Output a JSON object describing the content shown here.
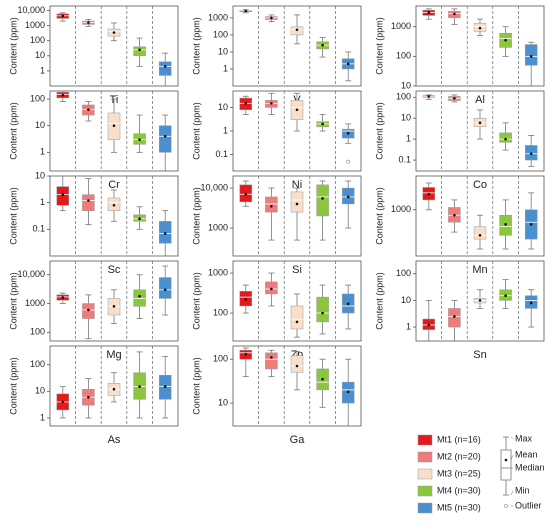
{
  "chart_data": [
    {
      "type": "box",
      "title": "Ti",
      "ylabel": "Content (ppm)",
      "log": true,
      "ylim": [
        0.1,
        20000
      ],
      "yticks": [
        1,
        10,
        100,
        1000,
        {
          "value": 10000,
          "label": "10,000"
        }
      ],
      "boxes": [
        {
          "min": 2000,
          "q1": 3000,
          "median": 4500,
          "q3": 6000,
          "max": 7000,
          "mean": 4500
        },
        {
          "min": 900,
          "q1": 1200,
          "median": 1600,
          "q3": 2000,
          "max": 2500,
          "mean": 1600
        },
        {
          "min": 100,
          "q1": 200,
          "median": 400,
          "q3": 600,
          "max": 1500,
          "mean": 350
        },
        {
          "min": 2,
          "q1": 10,
          "median": 25,
          "q3": 40,
          "max": 150,
          "mean": 25
        },
        {
          "min": 0.1,
          "q1": 0.5,
          "median": 2,
          "q3": 4,
          "max": 15,
          "mean": 2
        }
      ]
    },
    {
      "type": "box",
      "title": "V",
      "ylabel": "Content (ppm)",
      "log": true,
      "ylim": [
        0.1,
        5000
      ],
      "yticks": [
        1,
        10,
        100,
        1000
      ],
      "boxes": [
        {
          "min": 2000,
          "q1": 2300,
          "median": 2600,
          "q3": 2800,
          "max": 3000,
          "mean": 2600
        },
        {
          "min": 600,
          "q1": 800,
          "median": 1000,
          "q3": 1200,
          "max": 1500,
          "mean": 1000
        },
        {
          "min": 30,
          "q1": 100,
          "median": 200,
          "q3": 300,
          "max": 1500,
          "mean": 200
        },
        {
          "min": 5,
          "q1": 15,
          "median": 25,
          "q3": 40,
          "max": 70,
          "mean": 25
        },
        {
          "min": 0.2,
          "q1": 1,
          "median": 2,
          "q3": 4,
          "max": 10,
          "mean": 2
        }
      ]
    },
    {
      "type": "box",
      "title": "Al",
      "ylabel": "Content (ppm)",
      "log": true,
      "ylim": [
        10,
        5000
      ],
      "yticks": [
        10,
        100,
        1000
      ],
      "boxes": [
        {
          "min": 1800,
          "q1": 2400,
          "median": 3000,
          "q3": 3600,
          "max": 4000,
          "mean": 3000
        },
        {
          "min": 1200,
          "q1": 2000,
          "median": 2800,
          "q3": 3300,
          "max": 4000,
          "mean": 2700
        },
        {
          "min": 500,
          "q1": 700,
          "median": 1000,
          "q3": 1300,
          "max": 1800,
          "mean": 900
        },
        {
          "min": 100,
          "q1": 200,
          "median": 400,
          "q3": 600,
          "max": 1000,
          "mean": 350
        },
        {
          "min": 10,
          "q1": 50,
          "median": 100,
          "q3": 250,
          "max": 300,
          "mean": 100
        }
      ]
    },
    {
      "type": "box",
      "title": "Cr",
      "ylabel": "Content (ppm)",
      "log": true,
      "ylim": [
        0.2,
        200
      ],
      "yticks": [
        1,
        10,
        100
      ],
      "boxes": [
        {
          "min": 80,
          "q1": 110,
          "median": 150,
          "q3": 180,
          "max": 200,
          "mean": 140
        },
        {
          "min": 15,
          "q1": 25,
          "median": 40,
          "q3": 60,
          "max": 80,
          "mean": 40
        },
        {
          "min": 1,
          "q1": 3,
          "median": 12,
          "q3": 30,
          "max": 100,
          "mean": 10
        },
        {
          "min": 1,
          "q1": 2,
          "median": 3,
          "q3": 5,
          "max": 25,
          "mean": 3
        },
        {
          "min": 0.2,
          "q1": 1,
          "median": 4,
          "q3": 10,
          "max": 25,
          "mean": 4
        }
      ]
    },
    {
      "type": "box",
      "title": "Ni",
      "ylabel": "Content (ppm)",
      "log": true,
      "ylim": [
        0.02,
        50
      ],
      "yticks": [
        0.1,
        1,
        10
      ],
      "boxes": [
        {
          "min": 5,
          "q1": 8,
          "median": 15,
          "q3": 25,
          "max": 30,
          "mean": 15
        },
        {
          "min": 5,
          "q1": 10,
          "median": 15,
          "q3": 20,
          "max": 40,
          "mean": 15
        },
        {
          "min": 1,
          "q1": 3,
          "median": 10,
          "q3": 20,
          "max": 40,
          "mean": 8
        },
        {
          "min": 1,
          "q1": 1.5,
          "median": 2,
          "q3": 2.5,
          "max": 5,
          "mean": 2
        },
        {
          "min": 0.3,
          "q1": 0.5,
          "median": 1,
          "q3": 1.2,
          "max": 2,
          "mean": 0.8,
          "outliers": [
            0.05
          ]
        }
      ]
    },
    {
      "type": "box",
      "title": "Co",
      "ylabel": "Content (ppm)",
      "log": true,
      "ylim": [
        0.03,
        200
      ],
      "yticks": [
        0.1,
        1,
        10,
        100
      ],
      "boxes": [
        {
          "min": 80,
          "q1": 100,
          "median": 110,
          "q3": 120,
          "max": 130,
          "mean": 110
        },
        {
          "min": 60,
          "q1": 70,
          "median": 90,
          "q3": 110,
          "max": 130,
          "mean": 90
        },
        {
          "min": 1,
          "q1": 4,
          "median": 6,
          "q3": 10,
          "max": 25,
          "mean": 6
        },
        {
          "min": 0.3,
          "q1": 0.7,
          "median": 1,
          "q3": 2,
          "max": 6,
          "mean": 1
        },
        {
          "min": 0.05,
          "q1": 0.1,
          "median": 0.2,
          "q3": 0.5,
          "max": 1.5,
          "mean": 0.2
        }
      ]
    },
    {
      "type": "box",
      "title": "Sc",
      "ylabel": "Content (ppm)",
      "log": true,
      "ylim": [
        0.01,
        10
      ],
      "yticks": [
        0.1,
        1,
        10
      ],
      "boxes": [
        {
          "min": 0.5,
          "q1": 0.8,
          "median": 2,
          "q3": 4,
          "max": 10,
          "mean": 2
        },
        {
          "min": 0.15,
          "q1": 0.5,
          "median": 1.2,
          "q3": 2,
          "max": 8,
          "mean": 1.2
        },
        {
          "min": 0.2,
          "q1": 0.5,
          "median": 1,
          "q3": 1.5,
          "max": 3,
          "mean": 0.8
        },
        {
          "min": 0.1,
          "q1": 0.2,
          "median": 0.25,
          "q3": 0.35,
          "max": 0.7,
          "mean": 0.25
        },
        {
          "min": 0.01,
          "q1": 0.03,
          "median": 0.07,
          "q3": 0.2,
          "max": 0.5,
          "mean": 0.07
        }
      ]
    },
    {
      "type": "box",
      "title": "Si",
      "ylabel": "Content (ppm)",
      "log": true,
      "ylim": [
        200,
        20000
      ],
      "yticks": [
        1000,
        {
          "value": 10000,
          "label": "10,000"
        }
      ],
      "boxes": [
        {
          "min": 3500,
          "q1": 4500,
          "median": 7000,
          "q3": 12000,
          "max": 15000,
          "mean": 7000
        },
        {
          "min": 500,
          "q1": 2500,
          "median": 4000,
          "q3": 6000,
          "max": 10000,
          "mean": 3500
        },
        {
          "min": 500,
          "q1": 2500,
          "median": 5000,
          "q3": 8000,
          "max": 10000,
          "mean": 4000
        },
        {
          "min": 500,
          "q1": 2000,
          "median": 6000,
          "q3": 12000,
          "max": 15000,
          "mean": 5500
        },
        {
          "min": 1000,
          "q1": 4000,
          "median": 6000,
          "q3": 10000,
          "max": 15000,
          "mean": 6000
        }
      ]
    },
    {
      "type": "box",
      "title": "Mn",
      "ylabel": "Content (ppm)",
      "log": true,
      "ylim": [
        150,
        4000
      ],
      "yticks": [
        1000
      ],
      "boxes": [
        {
          "min": 1000,
          "q1": 1500,
          "median": 2000,
          "q3": 2500,
          "max": 3000,
          "mean": 1900
        },
        {
          "min": 400,
          "q1": 600,
          "median": 800,
          "q3": 1100,
          "max": 1500,
          "mean": 800
        },
        {
          "min": 200,
          "q1": 300,
          "median": 350,
          "q3": 500,
          "max": 800,
          "mean": 350
        },
        {
          "min": 200,
          "q1": 350,
          "median": 500,
          "q3": 800,
          "max": 1500,
          "mean": 550
        },
        {
          "min": 200,
          "q1": 300,
          "median": 600,
          "q3": 1000,
          "max": 2000,
          "mean": 550
        }
      ]
    },
    {
      "type": "box",
      "title": "Mg",
      "ylabel": "Content (ppm)",
      "log": true,
      "ylim": [
        50,
        30000
      ],
      "yticks": [
        100,
        1000,
        {
          "value": 10000,
          "label": "10,000"
        }
      ],
      "boxes": [
        {
          "min": 1000,
          "q1": 1300,
          "median": 1700,
          "q3": 2000,
          "max": 2300,
          "mean": 1600
        },
        {
          "min": 60,
          "q1": 300,
          "median": 600,
          "q3": 1000,
          "max": 2000,
          "mean": 600
        },
        {
          "min": 200,
          "q1": 400,
          "median": 800,
          "q3": 1500,
          "max": 3000,
          "mean": 800
        },
        {
          "min": 300,
          "q1": 800,
          "median": 1500,
          "q3": 3000,
          "max": 10000,
          "mean": 1800
        },
        {
          "min": 400,
          "q1": 1500,
          "median": 3000,
          "q3": 8000,
          "max": 20000,
          "mean": 3000
        }
      ]
    },
    {
      "type": "box",
      "title": "Zn",
      "ylabel": "Content (ppm)",
      "log": true,
      "ylim": [
        20,
        2000
      ],
      "yticks": [
        100,
        1000
      ],
      "boxes": [
        {
          "min": 100,
          "q1": 150,
          "median": 250,
          "q3": 350,
          "max": 500,
          "mean": 220
        },
        {
          "min": 150,
          "q1": 300,
          "median": 400,
          "q3": 600,
          "max": 1000,
          "mean": 400
        },
        {
          "min": 25,
          "q1": 40,
          "median": 70,
          "q3": 150,
          "max": 300,
          "mean": 60
        },
        {
          "min": 30,
          "q1": 60,
          "median": 100,
          "q3": 250,
          "max": 500,
          "mean": 100
        },
        {
          "min": 40,
          "q1": 100,
          "median": 150,
          "q3": 300,
          "max": 500,
          "mean": 170
        }
      ]
    },
    {
      "type": "box",
      "title": "Sn",
      "ylabel": "Content (ppm)",
      "log": true,
      "ylim": [
        0.3,
        300
      ],
      "yticks": [
        1,
        10,
        100
      ],
      "boxes": [
        {
          "min": 0.3,
          "q1": 0.8,
          "median": 1.2,
          "q3": 2,
          "max": 10,
          "mean": 1.2
        },
        {
          "min": 0.3,
          "q1": 1,
          "median": 2.5,
          "q3": 5,
          "max": 10,
          "mean": 2.5
        },
        {
          "min": 5,
          "q1": 8,
          "median": 10,
          "q3": 12,
          "max": 25,
          "mean": 10
        },
        {
          "min": 5,
          "q1": 10,
          "median": 15,
          "q3": 25,
          "max": 60,
          "mean": 15
        },
        {
          "min": 1,
          "q1": 5,
          "median": 10,
          "q3": 15,
          "max": 25,
          "mean": 8
        }
      ]
    },
    {
      "type": "box",
      "title": "As",
      "ylabel": "Content (ppm)",
      "log": true,
      "ylim": [
        0.5,
        500
      ],
      "yticks": [
        1,
        10,
        100
      ],
      "boxes": [
        {
          "min": 1,
          "q1": 2,
          "median": 4,
          "q3": 8,
          "max": 15,
          "mean": 4
        },
        {
          "min": 1,
          "q1": 3,
          "median": 6,
          "q3": 12,
          "max": 30,
          "mean": 6
        },
        {
          "min": 4,
          "q1": 7,
          "median": 12,
          "q3": 20,
          "max": 50,
          "mean": 12
        },
        {
          "min": 1,
          "q1": 5,
          "median": 15,
          "q3": 50,
          "max": 300,
          "mean": 15
        },
        {
          "min": 1,
          "q1": 5,
          "median": 15,
          "q3": 40,
          "max": 200,
          "mean": 15
        }
      ]
    },
    {
      "type": "box",
      "title": "Ga",
      "ylabel": "Content (ppm)",
      "log": true,
      "ylim": [
        3,
        200
      ],
      "yticks": [
        10,
        100
      ],
      "boxes": [
        {
          "min": 40,
          "q1": 100,
          "median": 140,
          "q3": 160,
          "max": 180,
          "mean": 130
        },
        {
          "min": 40,
          "q1": 60,
          "median": 100,
          "q3": 140,
          "max": 160,
          "mean": 110
        },
        {
          "min": 20,
          "q1": 50,
          "median": 70,
          "q3": 120,
          "max": 150,
          "mean": 70
        },
        {
          "min": 8,
          "q1": 20,
          "median": 30,
          "q3": 60,
          "max": 100,
          "mean": 35
        },
        {
          "min": 3,
          "q1": 10,
          "median": 20,
          "q3": 30,
          "max": 100,
          "mean": 18
        }
      ]
    }
  ],
  "legend": {
    "items": [
      {
        "name": "Mt1 (n=16)",
        "color": "#e3191c"
      },
      {
        "name": "Mt2 (n=20)",
        "color": "#f07b7b"
      },
      {
        "name": "Mt3 (n=25)",
        "color": "#f7dfcc"
      },
      {
        "name": "Mt4 (n=30)",
        "color": "#8cc63e"
      },
      {
        "name": "Mt5 (n=30)",
        "color": "#4a8fd0"
      }
    ],
    "key": [
      "Max",
      "Mean",
      "Median",
      "Min",
      "Outlier"
    ]
  }
}
